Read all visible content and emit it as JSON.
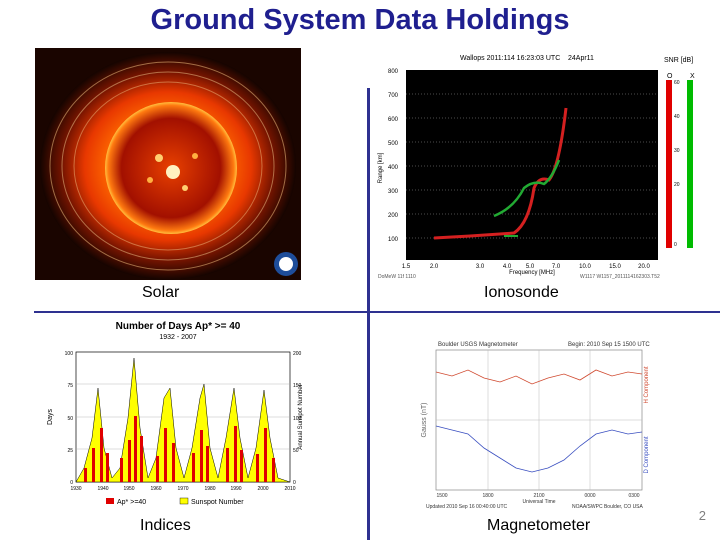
{
  "slide": {
    "title": "Ground System Data Holdings",
    "page_number": "2"
  },
  "panels": {
    "solar": {
      "caption": "Solar"
    },
    "ionosonde": {
      "caption": "Ionosonde",
      "header": "Wallops 2011:114 16:23:03 UTC",
      "date": "24Apr11",
      "snr_label": "SNR [dB]",
      "o_label": "O",
      "x_label": "X",
      "ylabel": "Range [km]",
      "xlabel": "Frequency [MHz]",
      "y_ticks": [
        "800",
        "700",
        "600",
        "500",
        "400",
        "300",
        "200",
        "100"
      ],
      "x_ticks": [
        "1.5",
        "2.0",
        "3.0",
        "4.0",
        "5.0",
        "7.0",
        "10.0",
        "15.0",
        "20.0"
      ],
      "snr_ticks": [
        "60",
        "40",
        "30",
        "20",
        "0"
      ],
      "footer_left": "DoMeW 11f 1110",
      "footer_right": "W1117 W1157_2011114162303.T52"
    },
    "indices": {
      "caption": "Indices",
      "chart_title": "Number of Days Ap* >= 40",
      "chart_subtitle": "1932 - 2007",
      "ylabel": "Days",
      "ylabel_right": "Annual Sunspot Number",
      "left_ticks": [
        "100",
        "75",
        "50",
        "25",
        "0"
      ],
      "right_ticks": [
        "200",
        "150",
        "100",
        "50",
        "0"
      ],
      "x_ticks": [
        "1930",
        "1940",
        "1950",
        "1960",
        "1970",
        "1980",
        "1990",
        "2000",
        "2010"
      ],
      "legend": [
        "Ap* >=40",
        "Sunspot Number"
      ],
      "colors": {
        "ap": "#e00000",
        "sunspot": "#ffff00"
      }
    },
    "magnetometer": {
      "caption": "Magnetometer",
      "header_left": "Boulder USGS Magnetometer",
      "header_right": "Begin: 2010 Sep 15 1500 UTC",
      "ylabel": "Gauss (nT)",
      "h_label": "H Component",
      "d_label": "D Component",
      "x_ticks": [
        "1500",
        "1800",
        "2100",
        "0000",
        "0300"
      ],
      "xlabel": "Universal Time",
      "footer_left": "Updated 2010 Sep 16 00:40:00 UTC",
      "footer_right": "NOAA/SWPC Boulder, CO USA"
    }
  }
}
